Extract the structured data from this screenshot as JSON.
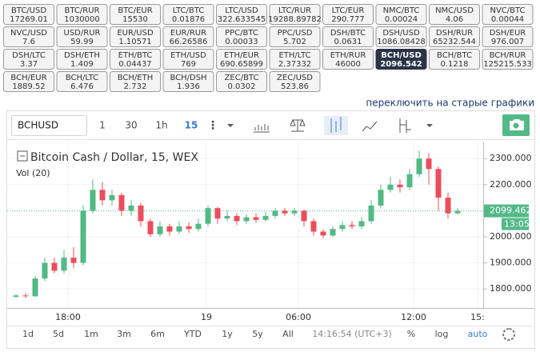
{
  "tickers": [
    {
      "pair": "BTC/USD",
      "price": "17269.01"
    },
    {
      "pair": "BTC/RUR",
      "price": "1030000"
    },
    {
      "pair": "BTC/EUR",
      "price": "15530"
    },
    {
      "pair": "LTC/BTC",
      "price": "0.01876"
    },
    {
      "pair": "LTC/USD",
      "price": "322.633545"
    },
    {
      "pair": "LTC/RUR",
      "price": "19288.89782"
    },
    {
      "pair": "LTC/EUR",
      "price": "290.777"
    },
    {
      "pair": "NMC/BTC",
      "price": "0.00024"
    },
    {
      "pair": "NMC/USD",
      "price": "4.06"
    },
    {
      "pair": "NVC/BTC",
      "price": "0.00044"
    },
    {
      "pair": "NVC/USD",
      "price": "7.6"
    },
    {
      "pair": "USD/RUR",
      "price": "59.99"
    },
    {
      "pair": "EUR/USD",
      "price": "1.10571"
    },
    {
      "pair": "EUR/RUR",
      "price": "66.26586"
    },
    {
      "pair": "PPC/BTC",
      "price": "0.00033"
    },
    {
      "pair": "PPC/USD",
      "price": "5.702"
    },
    {
      "pair": "DSH/BTC",
      "price": "0.0631"
    },
    {
      "pair": "DSH/USD",
      "price": "1086.08428"
    },
    {
      "pair": "DSH/RUR",
      "price": "65232.544"
    },
    {
      "pair": "DSH/EUR",
      "price": "976.007"
    },
    {
      "pair": "DSH/LTC",
      "price": "3.37"
    },
    {
      "pair": "DSH/ETH",
      "price": "1.409"
    },
    {
      "pair": "ETH/BTC",
      "price": "0.04437"
    },
    {
      "pair": "ETH/USD",
      "price": "769"
    },
    {
      "pair": "ETH/EUR",
      "price": "690.65899"
    },
    {
      "pair": "ETH/LTC",
      "price": "2.37332"
    },
    {
      "pair": "ETH/RUR",
      "price": "46000"
    },
    {
      "pair": "BCH/USD",
      "price": "2096.542",
      "active": true
    },
    {
      "pair": "BCH/BTC",
      "price": "0.1218"
    },
    {
      "pair": "BCH/RUR",
      "price": "125215.533"
    },
    {
      "pair": "BCH/EUR",
      "price": "1889.52"
    },
    {
      "pair": "BCH/LTC",
      "price": "6.476"
    },
    {
      "pair": "BCH/ETH",
      "price": "2.732"
    },
    {
      "pair": "BCH/DSH",
      "price": "1.936"
    },
    {
      "pair": "ZEC/BTC",
      "price": "0.0302"
    },
    {
      "pair": "ZEC/USD",
      "price": "523.86"
    }
  ],
  "link": "переключить на старые графики",
  "toolbar": {
    "symbol": "BCHUSD",
    "intervals": [
      "1",
      "30",
      "1h",
      "15"
    ],
    "active_interval": "15"
  },
  "chart": {
    "title": "Bitcoin Cash / Dollar, 15, WEX",
    "volume_label": "Vol (20)",
    "ylim": [
      1727,
      2362
    ],
    "yticks": [
      {
        "value": 1800,
        "label": "1800.000"
      },
      {
        "value": 1900,
        "label": "1900.000"
      },
      {
        "value": 2000,
        "label": "2000.000"
      },
      {
        "value": 2200,
        "label": "2200.000"
      },
      {
        "value": 2300,
        "label": "2300.000"
      }
    ],
    "last_price": {
      "value": 2099.462,
      "label": "2099.462"
    },
    "countdown": "13:05",
    "time_labels": [
      "18:00",
      "19",
      "06:00",
      "12:00",
      "15:"
    ],
    "up_color": "#53b987",
    "down_color": "#eb4d5c",
    "candles": [
      {
        "o": 1770,
        "c": 1775,
        "h": 1780,
        "l": 1765
      },
      {
        "o": 1775,
        "c": 1772,
        "h": 1785,
        "l": 1765
      },
      {
        "o": 1772,
        "c": 1840,
        "h": 1850,
        "l": 1770
      },
      {
        "o": 1840,
        "c": 1900,
        "h": 1920,
        "l": 1830
      },
      {
        "o": 1900,
        "c": 1870,
        "h": 1920,
        "l": 1860
      },
      {
        "o": 1870,
        "c": 1920,
        "h": 1950,
        "l": 1860
      },
      {
        "o": 1920,
        "c": 1900,
        "h": 1960,
        "l": 1880
      },
      {
        "o": 1900,
        "c": 2100,
        "h": 2120,
        "l": 1890
      },
      {
        "o": 2100,
        "c": 2180,
        "h": 2220,
        "l": 2090
      },
      {
        "o": 2180,
        "c": 2140,
        "h": 2210,
        "l": 2120
      },
      {
        "o": 2140,
        "c": 2160,
        "h": 2180,
        "l": 2120
      },
      {
        "o": 2160,
        "c": 2100,
        "h": 2170,
        "l": 2080
      },
      {
        "o": 2100,
        "c": 2120,
        "h": 2140,
        "l": 2080
      },
      {
        "o": 2120,
        "c": 2060,
        "h": 2130,
        "l": 2040
      },
      {
        "o": 2060,
        "c": 2010,
        "h": 2070,
        "l": 2000
      },
      {
        "o": 2010,
        "c": 2040,
        "h": 2060,
        "l": 2000
      },
      {
        "o": 2040,
        "c": 2020,
        "h": 2050,
        "l": 2005
      },
      {
        "o": 2020,
        "c": 2040,
        "h": 2060,
        "l": 2010
      },
      {
        "o": 2040,
        "c": 2030,
        "h": 2055,
        "l": 2015
      },
      {
        "o": 2030,
        "c": 2050,
        "h": 2070,
        "l": 2020
      },
      {
        "o": 2050,
        "c": 2110,
        "h": 2120,
        "l": 2040
      },
      {
        "o": 2110,
        "c": 2070,
        "h": 2115,
        "l": 2050
      },
      {
        "o": 2070,
        "c": 2080,
        "h": 2100,
        "l": 2060
      },
      {
        "o": 2080,
        "c": 2060,
        "h": 2090,
        "l": 2045
      },
      {
        "o": 2060,
        "c": 2075,
        "h": 2085,
        "l": 2050
      },
      {
        "o": 2075,
        "c": 2065,
        "h": 2090,
        "l": 2055
      },
      {
        "o": 2065,
        "c": 2080,
        "h": 2095,
        "l": 2060
      },
      {
        "o": 2080,
        "c": 2100,
        "h": 2110,
        "l": 2070
      },
      {
        "o": 2100,
        "c": 2090,
        "h": 2110,
        "l": 2080
      },
      {
        "o": 2090,
        "c": 2100,
        "h": 2110,
        "l": 2080
      },
      {
        "o": 2100,
        "c": 2060,
        "h": 2105,
        "l": 2040
      },
      {
        "o": 2060,
        "c": 2020,
        "h": 2070,
        "l": 2005
      },
      {
        "o": 2020,
        "c": 2005,
        "h": 2030,
        "l": 1995
      },
      {
        "o": 2005,
        "c": 2030,
        "h": 2040,
        "l": 2000
      },
      {
        "o": 2030,
        "c": 2045,
        "h": 2060,
        "l": 2020
      },
      {
        "o": 2045,
        "c": 2040,
        "h": 2060,
        "l": 2030
      },
      {
        "o": 2040,
        "c": 2060,
        "h": 2075,
        "l": 2030
      },
      {
        "o": 2060,
        "c": 2120,
        "h": 2140,
        "l": 2050
      },
      {
        "o": 2120,
        "c": 2180,
        "h": 2200,
        "l": 2110
      },
      {
        "o": 2180,
        "c": 2200,
        "h": 2230,
        "l": 2170
      },
      {
        "o": 2200,
        "c": 2190,
        "h": 2220,
        "l": 2170
      },
      {
        "o": 2190,
        "c": 2240,
        "h": 2260,
        "l": 2180
      },
      {
        "o": 2240,
        "c": 2300,
        "h": 2330,
        "l": 2230
      },
      {
        "o": 2300,
        "c": 2260,
        "h": 2320,
        "l": 2200
      },
      {
        "o": 2260,
        "c": 2150,
        "h": 2270,
        "l": 2100
      },
      {
        "o": 2150,
        "c": 2090,
        "h": 2170,
        "l": 2070
      },
      {
        "o": 2090,
        "c": 2099.462,
        "h": 2110,
        "l": 2085
      }
    ]
  },
  "ranges": [
    "1d",
    "5d",
    "1m",
    "3m",
    "6m",
    "YTD",
    "1y",
    "5y",
    "All"
  ],
  "clock": "14:16:54 (UTC+3)",
  "options": [
    "%",
    "log",
    "auto"
  ],
  "active_option": "auto"
}
